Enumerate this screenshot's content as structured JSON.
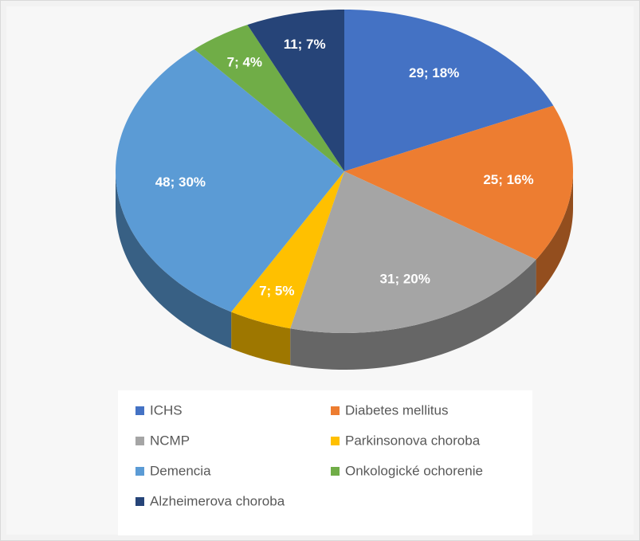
{
  "chart_data": {
    "type": "pie",
    "categories": [
      "ICHS",
      "Diabetes mellitus",
      "NCMP",
      "Parkinsonova choroba",
      "Demencia",
      "Onkologické ochorenie",
      "Alzheimerova choroba"
    ],
    "values": [
      29,
      25,
      31,
      7,
      48,
      7,
      11
    ],
    "value_labels": [
      "29; 18%",
      "25; 16%",
      "31; 20%",
      "7; 5%",
      "48; 30%",
      "7; 4%",
      "11; 7%"
    ],
    "colors": [
      "#4472c4",
      "#ed7d31",
      "#a5a5a5",
      "#ffc000",
      "#5b9bd5",
      "#70ad47",
      "#264478"
    ],
    "legend": "bottom"
  }
}
